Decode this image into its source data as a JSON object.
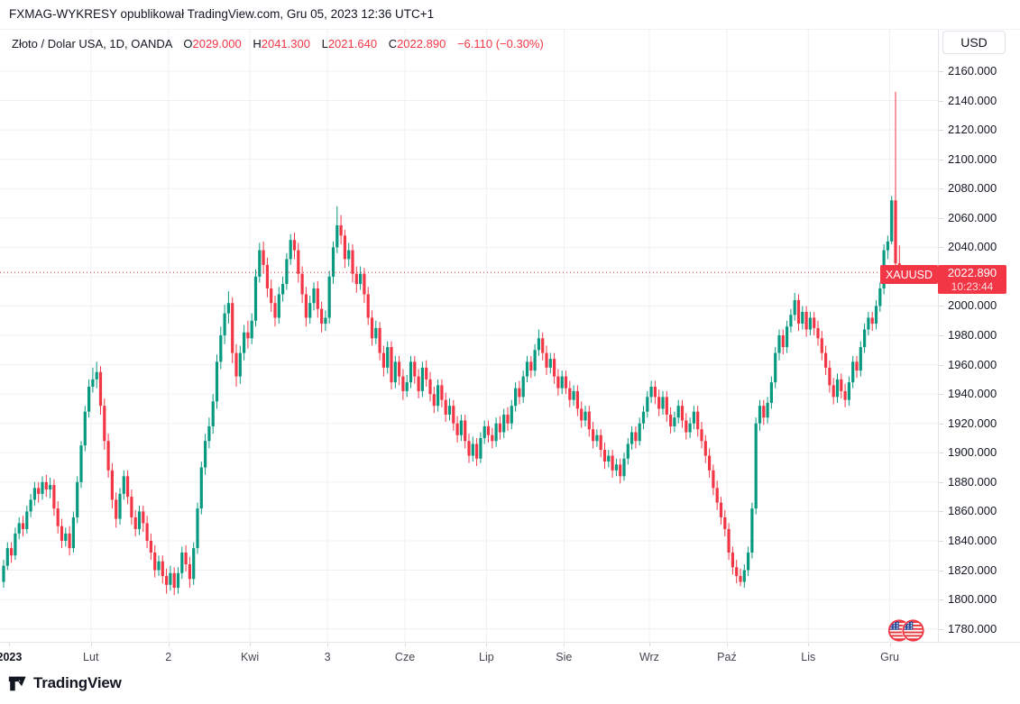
{
  "header": {
    "title": "FXMAG-WYKRESY opublikował TradingView.com, Gru 05, 2023 12:36 UTC+1"
  },
  "legend": {
    "symbol": "Złoto / Dolar USA, 1D, OANDA",
    "ohlc": [
      {
        "k": "O",
        "v": "2029.000"
      },
      {
        "k": "H",
        "v": "2041.300"
      },
      {
        "k": "L",
        "v": "2021.640"
      },
      {
        "k": "C",
        "v": "2022.890"
      }
    ],
    "change": "−6.110 (−0.30%)"
  },
  "toolbar": {
    "currency_label": "USD"
  },
  "price_label": {
    "symbol": "XAUUSD",
    "price": "2022.890",
    "countdown": "10:23:44"
  },
  "footer": {
    "logo_text": "TradingView"
  },
  "colors": {
    "up": "#089981",
    "down": "#F23645",
    "grid": "#eef0f4",
    "last_price_line": "#F23645",
    "flag_ring": "#f23645",
    "flag_blue": "#2a4b9b",
    "flag_red": "#e5393c"
  },
  "chart_data": {
    "type": "candlestick",
    "title": "Złoto / Dolar USA (XAUUSD), 1D, OANDA",
    "ylabel": "USD",
    "grid": true,
    "last_price": 2022.89,
    "today_ohlc": {
      "open": 2029.0,
      "high": 2041.3,
      "low": 2021.64,
      "close": 2022.89,
      "change": -6.11,
      "change_pct": -0.3
    },
    "y_axis": {
      "unit": "USD",
      "max": 2160,
      "min": 1780,
      "step": 20,
      "labels": [
        "2160.000",
        "2140.000",
        "2120.000",
        "2100.000",
        "2080.000",
        "2060.000",
        "2040.000",
        "2020.000",
        "2000.000",
        "1980.000",
        "1960.000",
        "1940.000",
        "1920.000",
        "1900.000",
        "1880.000",
        "1860.000",
        "1840.000",
        "1820.000",
        "1800.000",
        "1780.000"
      ]
    },
    "x_axis": {
      "labels": [
        {
          "text": "2023",
          "index": 2,
          "year": true
        },
        {
          "text": "Lut",
          "index": 23
        },
        {
          "text": "2",
          "index": 43
        },
        {
          "text": "Kwi",
          "index": 64
        },
        {
          "text": "3",
          "index": 84
        },
        {
          "text": "Cze",
          "index": 104
        },
        {
          "text": "Lip",
          "index": 125
        },
        {
          "text": "Sie",
          "index": 145
        },
        {
          "text": "Wrz",
          "index": 167
        },
        {
          "text": "Paź",
          "index": 187
        },
        {
          "text": "Lis",
          "index": 208
        },
        {
          "text": "Gru",
          "index": 229
        }
      ]
    },
    "candles": [
      [
        1812,
        1827,
        1808,
        1823
      ],
      [
        1823,
        1839,
        1820,
        1835
      ],
      [
        1835,
        1839,
        1825,
        1830
      ],
      [
        1830,
        1849,
        1827,
        1845
      ],
      [
        1845,
        1856,
        1841,
        1852
      ],
      [
        1852,
        1857,
        1843,
        1848
      ],
      [
        1848,
        1864,
        1845,
        1860
      ],
      [
        1860,
        1872,
        1856,
        1868
      ],
      [
        1868,
        1880,
        1864,
        1876
      ],
      [
        1876,
        1880,
        1866,
        1872
      ],
      [
        1872,
        1884,
        1868,
        1880
      ],
      [
        1880,
        1885,
        1870,
        1875
      ],
      [
        1875,
        1883,
        1869,
        1878
      ],
      [
        1878,
        1882,
        1857,
        1862
      ],
      [
        1862,
        1867,
        1845,
        1850
      ],
      [
        1850,
        1855,
        1835,
        1840
      ],
      [
        1840,
        1849,
        1836,
        1845
      ],
      [
        1845,
        1850,
        1830,
        1835
      ],
      [
        1835,
        1860,
        1832,
        1856
      ],
      [
        1856,
        1884,
        1852,
        1880
      ],
      [
        1880,
        1908,
        1876,
        1905
      ],
      [
        1905,
        1932,
        1901,
        1928
      ],
      [
        1928,
        1950,
        1924,
        1945
      ],
      [
        1945,
        1958,
        1941,
        1950
      ],
      [
        1950,
        1962,
        1944,
        1955
      ],
      [
        1955,
        1959,
        1926,
        1932
      ],
      [
        1932,
        1937,
        1902,
        1908
      ],
      [
        1908,
        1913,
        1883,
        1888
      ],
      [
        1888,
        1893,
        1862,
        1868
      ],
      [
        1868,
        1873,
        1849,
        1855
      ],
      [
        1855,
        1876,
        1851,
        1872
      ],
      [
        1872,
        1888,
        1868,
        1884
      ],
      [
        1884,
        1888,
        1865,
        1870
      ],
      [
        1870,
        1875,
        1851,
        1856
      ],
      [
        1856,
        1861,
        1843,
        1848
      ],
      [
        1848,
        1864,
        1844,
        1860
      ],
      [
        1860,
        1864,
        1846,
        1852
      ],
      [
        1852,
        1857,
        1835,
        1840
      ],
      [
        1840,
        1845,
        1827,
        1832
      ],
      [
        1832,
        1837,
        1815,
        1820
      ],
      [
        1820,
        1830,
        1816,
        1826
      ],
      [
        1826,
        1830,
        1811,
        1816
      ],
      [
        1816,
        1821,
        1804,
        1810
      ],
      [
        1810,
        1823,
        1806,
        1818
      ],
      [
        1818,
        1822,
        1803,
        1808
      ],
      [
        1808,
        1822,
        1804,
        1818
      ],
      [
        1818,
        1836,
        1814,
        1832
      ],
      [
        1832,
        1837,
        1819,
        1824
      ],
      [
        1824,
        1829,
        1808,
        1814
      ],
      [
        1814,
        1839,
        1810,
        1835
      ],
      [
        1835,
        1866,
        1831,
        1862
      ],
      [
        1862,
        1894,
        1858,
        1890
      ],
      [
        1890,
        1913,
        1885,
        1908
      ],
      [
        1908,
        1924,
        1903,
        1918
      ],
      [
        1918,
        1940,
        1913,
        1935
      ],
      [
        1935,
        1967,
        1930,
        1962
      ],
      [
        1962,
        1986,
        1957,
        1980
      ],
      [
        1980,
        2001,
        1974,
        1995
      ],
      [
        1995,
        2010,
        1988,
        2002
      ],
      [
        2002,
        2006,
        1961,
        1968
      ],
      [
        1968,
        1974,
        1945,
        1952
      ],
      [
        1952,
        1973,
        1947,
        1968
      ],
      [
        1968,
        1987,
        1963,
        1982
      ],
      [
        1982,
        1990,
        1971,
        1978
      ],
      [
        1978,
        1995,
        1974,
        1990
      ],
      [
        1990,
        2025,
        1986,
        2020
      ],
      [
        2020,
        2043,
        2016,
        2038
      ],
      [
        2038,
        2044,
        2022,
        2028
      ],
      [
        2028,
        2033,
        2006,
        2012
      ],
      [
        2012,
        2018,
        1996,
        2002
      ],
      [
        2002,
        2007,
        1986,
        1992
      ],
      [
        1992,
        2013,
        1988,
        2008
      ],
      [
        2008,
        2020,
        2003,
        2015
      ],
      [
        2015,
        2036,
        2011,
        2032
      ],
      [
        2032,
        2049,
        2028,
        2045
      ],
      [
        2045,
        2050,
        2032,
        2038
      ],
      [
        2038,
        2043,
        2016,
        2022
      ],
      [
        2022,
        2027,
        2002,
        2008
      ],
      [
        2008,
        2013,
        1986,
        1992
      ],
      [
        1992,
        2007,
        1988,
        2002
      ],
      [
        2002,
        2016,
        1997,
        2012
      ],
      [
        2012,
        2017,
        1992,
        1998
      ],
      [
        1998,
        2003,
        1982,
        1988
      ],
      [
        1988,
        1997,
        1983,
        1992
      ],
      [
        1992,
        2024,
        1988,
        2020
      ],
      [
        2020,
        2044,
        2015,
        2040
      ],
      [
        2040,
        2068,
        2036,
        2055
      ],
      [
        2055,
        2062,
        2042,
        2048
      ],
      [
        2048,
        2052,
        2026,
        2032
      ],
      [
        2032,
        2043,
        2027,
        2038
      ],
      [
        2038,
        2042,
        2016,
        2022
      ],
      [
        2022,
        2027,
        2009,
        2015
      ],
      [
        2015,
        2027,
        2011,
        2022
      ],
      [
        2022,
        2026,
        2002,
        2008
      ],
      [
        2008,
        2013,
        1987,
        1992
      ],
      [
        1992,
        1997,
        1973,
        1978
      ],
      [
        1978,
        1990,
        1974,
        1985
      ],
      [
        1985,
        1989,
        1963,
        1968
      ],
      [
        1968,
        1973,
        1952,
        1958
      ],
      [
        1958,
        1976,
        1954,
        1972
      ],
      [
        1972,
        1976,
        1943,
        1948
      ],
      [
        1948,
        1966,
        1944,
        1962
      ],
      [
        1962,
        1966,
        1946,
        1952
      ],
      [
        1952,
        1957,
        1936,
        1942
      ],
      [
        1942,
        1953,
        1938,
        1948
      ],
      [
        1948,
        1966,
        1944,
        1962
      ],
      [
        1962,
        1966,
        1947,
        1952
      ],
      [
        1952,
        1957,
        1937,
        1942
      ],
      [
        1942,
        1962,
        1938,
        1958
      ],
      [
        1958,
        1963,
        1945,
        1950
      ],
      [
        1950,
        1955,
        1935,
        1940
      ],
      [
        1940,
        1945,
        1927,
        1932
      ],
      [
        1932,
        1950,
        1928,
        1946
      ],
      [
        1946,
        1950,
        1931,
        1936
      ],
      [
        1936,
        1941,
        1921,
        1926
      ],
      [
        1926,
        1937,
        1922,
        1932
      ],
      [
        1932,
        1936,
        1915,
        1920
      ],
      [
        1920,
        1925,
        1907,
        1912
      ],
      [
        1912,
        1926,
        1908,
        1922
      ],
      [
        1922,
        1926,
        1903,
        1908
      ],
      [
        1908,
        1913,
        1893,
        1898
      ],
      [
        1898,
        1911,
        1894,
        1906
      ],
      [
        1906,
        1910,
        1891,
        1896
      ],
      [
        1896,
        1914,
        1893,
        1910
      ],
      [
        1910,
        1922,
        1906,
        1918
      ],
      [
        1918,
        1922,
        1907,
        1912
      ],
      [
        1912,
        1917,
        1903,
        1908
      ],
      [
        1908,
        1924,
        1904,
        1920
      ],
      [
        1920,
        1925,
        1909,
        1914
      ],
      [
        1914,
        1930,
        1910,
        1926
      ],
      [
        1926,
        1931,
        1915,
        1920
      ],
      [
        1920,
        1936,
        1916,
        1932
      ],
      [
        1932,
        1948,
        1928,
        1944
      ],
      [
        1944,
        1949,
        1933,
        1938
      ],
      [
        1938,
        1956,
        1934,
        1952
      ],
      [
        1952,
        1966,
        1948,
        1962
      ],
      [
        1962,
        1966,
        1951,
        1956
      ],
      [
        1956,
        1974,
        1952,
        1970
      ],
      [
        1970,
        1984,
        1966,
        1978
      ],
      [
        1978,
        1982,
        1963,
        1968
      ],
      [
        1968,
        1973,
        1953,
        1958
      ],
      [
        1958,
        1968,
        1954,
        1964
      ],
      [
        1964,
        1968,
        1947,
        1952
      ],
      [
        1952,
        1957,
        1939,
        1944
      ],
      [
        1944,
        1956,
        1940,
        1952
      ],
      [
        1952,
        1956,
        1940,
        1944
      ],
      [
        1944,
        1949,
        1931,
        1936
      ],
      [
        1936,
        1946,
        1932,
        1942
      ],
      [
        1942,
        1946,
        1925,
        1930
      ],
      [
        1930,
        1935,
        1917,
        1922
      ],
      [
        1922,
        1932,
        1918,
        1928
      ],
      [
        1928,
        1932,
        1911,
        1916
      ],
      [
        1916,
        1921,
        1903,
        1908
      ],
      [
        1908,
        1916,
        1904,
        1912
      ],
      [
        1912,
        1916,
        1897,
        1902
      ],
      [
        1902,
        1907,
        1889,
        1894
      ],
      [
        1894,
        1902,
        1890,
        1898
      ],
      [
        1898,
        1902,
        1883,
        1888
      ],
      [
        1888,
        1896,
        1884,
        1892
      ],
      [
        1892,
        1896,
        1879,
        1884
      ],
      [
        1884,
        1900,
        1881,
        1896
      ],
      [
        1896,
        1910,
        1892,
        1906
      ],
      [
        1906,
        1918,
        1902,
        1914
      ],
      [
        1914,
        1918,
        1903,
        1908
      ],
      [
        1908,
        1924,
        1905,
        1920
      ],
      [
        1920,
        1932,
        1916,
        1928
      ],
      [
        1928,
        1942,
        1924,
        1938
      ],
      [
        1938,
        1949,
        1934,
        1945
      ],
      [
        1945,
        1949,
        1933,
        1938
      ],
      [
        1938,
        1943,
        1925,
        1930
      ],
      [
        1930,
        1942,
        1926,
        1938
      ],
      [
        1938,
        1942,
        1921,
        1926
      ],
      [
        1926,
        1931,
        1913,
        1918
      ],
      [
        1918,
        1928,
        1914,
        1924
      ],
      [
        1924,
        1936,
        1920,
        1932
      ],
      [
        1932,
        1936,
        1917,
        1922
      ],
      [
        1922,
        1927,
        1909,
        1914
      ],
      [
        1914,
        1924,
        1910,
        1920
      ],
      [
        1920,
        1932,
        1916,
        1928
      ],
      [
        1928,
        1932,
        1911,
        1916
      ],
      [
        1916,
        1921,
        1903,
        1908
      ],
      [
        1908,
        1912,
        1893,
        1898
      ],
      [
        1898,
        1903,
        1883,
        1888
      ],
      [
        1888,
        1892,
        1871,
        1876
      ],
      [
        1876,
        1881,
        1861,
        1866
      ],
      [
        1866,
        1870,
        1851,
        1856
      ],
      [
        1856,
        1861,
        1843,
        1848
      ],
      [
        1848,
        1852,
        1827,
        1832
      ],
      [
        1832,
        1836,
        1817,
        1822
      ],
      [
        1822,
        1827,
        1811,
        1816
      ],
      [
        1816,
        1821,
        1809,
        1812
      ],
      [
        1812,
        1824,
        1808,
        1820
      ],
      [
        1820,
        1836,
        1816,
        1832
      ],
      [
        1832,
        1866,
        1828,
        1862
      ],
      [
        1862,
        1924,
        1858,
        1920
      ],
      [
        1920,
        1936,
        1915,
        1932
      ],
      [
        1932,
        1936,
        1919,
        1924
      ],
      [
        1924,
        1938,
        1920,
        1934
      ],
      [
        1934,
        1952,
        1930,
        1948
      ],
      [
        1948,
        1972,
        1944,
        1968
      ],
      [
        1968,
        1984,
        1963,
        1980
      ],
      [
        1980,
        1984,
        1967,
        1972
      ],
      [
        1972,
        1990,
        1968,
        1986
      ],
      [
        1986,
        1998,
        1982,
        1994
      ],
      [
        1994,
        2009,
        1990,
        2004
      ],
      [
        2004,
        2008,
        1983,
        1988
      ],
      [
        1988,
        2000,
        1984,
        1996
      ],
      [
        1996,
        2000,
        1979,
        1984
      ],
      [
        1984,
        1996,
        1980,
        1992
      ],
      [
        1992,
        1996,
        1980,
        1985
      ],
      [
        1985,
        1990,
        1973,
        1978
      ],
      [
        1978,
        1983,
        1963,
        1968
      ],
      [
        1968,
        1973,
        1953,
        1958
      ],
      [
        1958,
        1963,
        1941,
        1946
      ],
      [
        1946,
        1951,
        1933,
        1938
      ],
      [
        1938,
        1954,
        1934,
        1950
      ],
      [
        1950,
        1954,
        1937,
        1942
      ],
      [
        1942,
        1947,
        1931,
        1936
      ],
      [
        1936,
        1952,
        1932,
        1948
      ],
      [
        1948,
        1966,
        1944,
        1962
      ],
      [
        1962,
        1966,
        1951,
        1956
      ],
      [
        1956,
        1976,
        1952,
        1972
      ],
      [
        1972,
        1988,
        1968,
        1984
      ],
      [
        1984,
        1996,
        1980,
        1992
      ],
      [
        1992,
        1996,
        1983,
        1988
      ],
      [
        1988,
        2004,
        1984,
        2000
      ],
      [
        2000,
        2016,
        1996,
        2012
      ],
      [
        2012,
        2042,
        2008,
        2038
      ],
      [
        2038,
        2048,
        2032,
        2044
      ],
      [
        2044,
        2075,
        2042,
        2072
      ],
      [
        2072,
        2146,
        2020,
        2029
      ],
      [
        2029,
        2041.3,
        2021.64,
        2022.89
      ]
    ]
  }
}
